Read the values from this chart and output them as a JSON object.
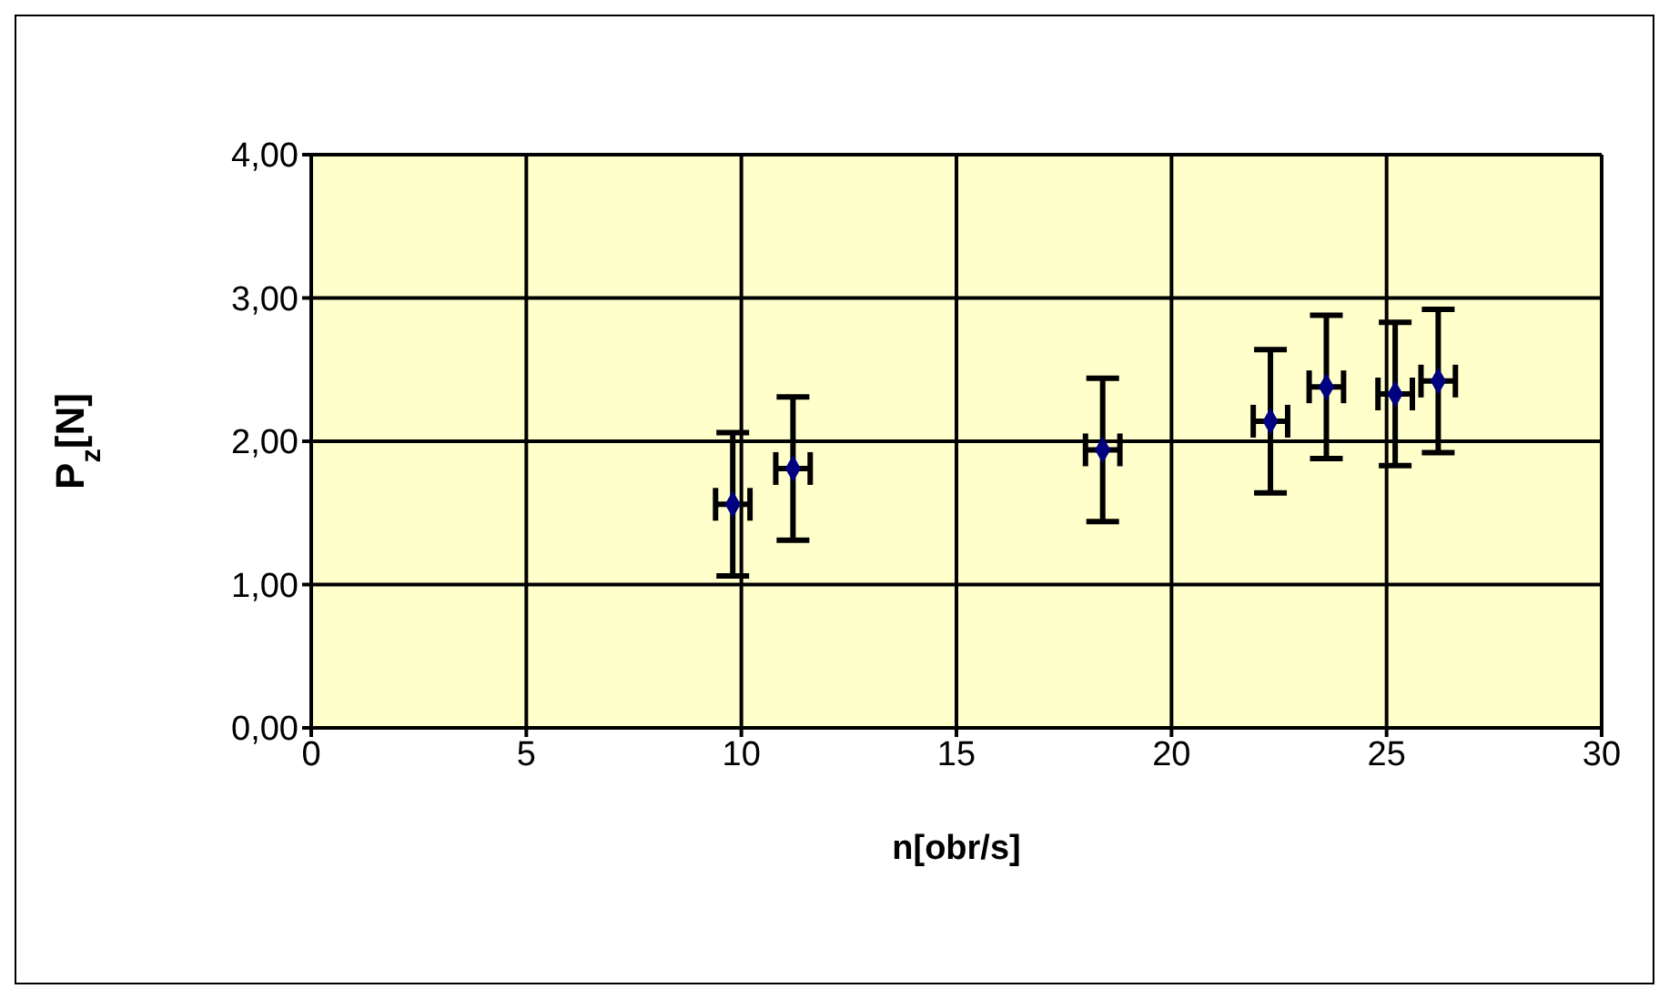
{
  "chart_data": {
    "type": "scatter",
    "xlabel": "n[obr/s]",
    "ylabel": "P$_{z}$[N]",
    "x": [
      9.8,
      11.2,
      18.4,
      22.3,
      23.6,
      25.2,
      26.2
    ],
    "series": [
      {
        "color": "#000080",
        "values": [
          1.56,
          1.81,
          1.94,
          2.14,
          2.38,
          2.33,
          2.42
        ],
        "errors": [
          0.5,
          0.5,
          0.5,
          0.5,
          0.5,
          0.5,
          0.5
        ],
        "xerrors": [
          0.4,
          0.4,
          0.4,
          0.4,
          0.4,
          0.4,
          0.4
        ]
      }
    ],
    "xlim": [
      0,
      30
    ],
    "xticks": [
      0,
      5,
      10,
      15,
      20,
      25,
      30
    ],
    "ylim": [
      0,
      4
    ],
    "yticks": [
      {
        "value": 0,
        "label": "0,00"
      },
      {
        "value": 1,
        "label": "1,00"
      },
      {
        "value": 2,
        "label": "2,00"
      },
      {
        "value": 3,
        "label": "3,00"
      },
      {
        "value": 4,
        "label": "4,00"
      }
    ],
    "grid": true,
    "legend": false,
    "marker": "diamond"
  }
}
